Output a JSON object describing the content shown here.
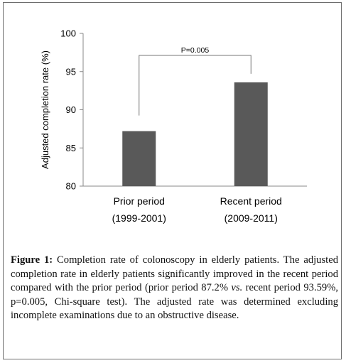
{
  "chart_data": {
    "type": "bar",
    "categories": [
      [
        "Prior period",
        "(1999-2001)"
      ],
      [
        "Recent period",
        "(2009-2011)"
      ]
    ],
    "values": [
      87.2,
      93.59
    ],
    "ylabel": "Adjusted completion rate (%)",
    "ylim": [
      80,
      100
    ],
    "yticks": [
      80,
      85,
      90,
      95,
      100
    ],
    "grid": false,
    "bar_color": "#595959",
    "annotation": {
      "label": "P=0.005",
      "between": [
        0,
        1
      ]
    }
  },
  "caption": {
    "label": "Figure 1:",
    "part1": " Completion rate of colonoscopy in elderly patients. The adjusted completion rate in elderly patients significantly improved in the recent period compared with the prior period (prior period 87.2% ",
    "italic": "vs.",
    "part2": " recent period 93.59%, p=0.005, Chi-square test). The adjusted rate was determined excluding incomplete examinations due to an obstructive disease."
  }
}
